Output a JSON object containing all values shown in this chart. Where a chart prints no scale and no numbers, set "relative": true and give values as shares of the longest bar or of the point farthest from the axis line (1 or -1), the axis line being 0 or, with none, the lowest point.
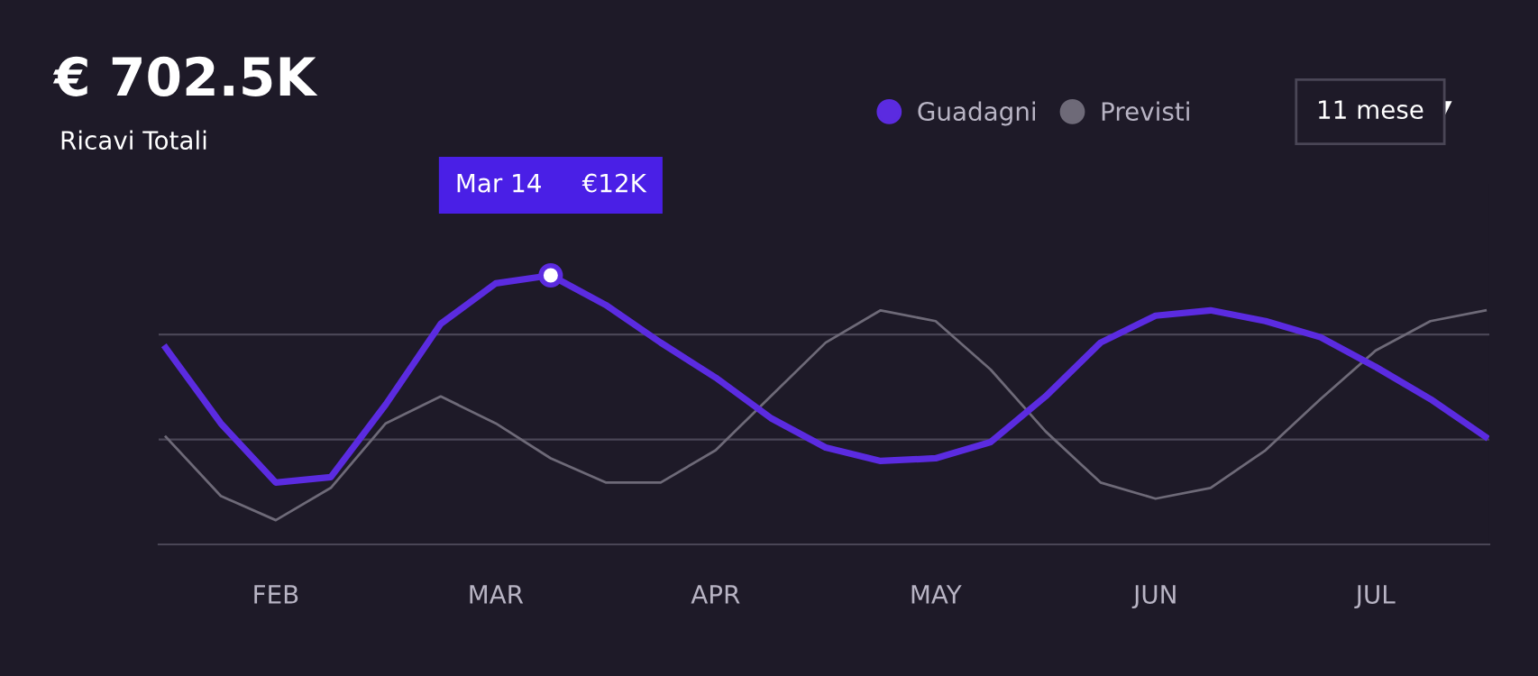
{
  "chart_data": {
    "type": "line",
    "title": "€ 702.5K",
    "subtitle": "Ricavi Totali",
    "relative": true,
    "ref_lines": [
      {
        "axis": "y",
        "value": 0.39,
        "color": "#4a4656"
      },
      {
        "axis": "y",
        "value": 0.78,
        "color": "#4a4656"
      }
    ],
    "legend": "top right",
    "marker": "none",
    "line_style": "solid",
    "categories": [
      null,
      null,
      "FEB",
      null,
      null,
      null,
      "MAR",
      null,
      null,
      null,
      "APR",
      null,
      null,
      null,
      "MAY",
      null,
      null,
      null,
      "JUN",
      null,
      null,
      null,
      "JUL",
      null,
      null
    ],
    "annotations": [
      "Mar 14",
      "€12K",
      "11 mese"
    ],
    "series": [
      {
        "name": "Guadagni",
        "color": "#5b2be0",
        "values": [
          0.73,
          0.45,
          0.23,
          0.25,
          0.52,
          0.82,
          0.97,
          1.0,
          0.89,
          0.75,
          0.62,
          0.47,
          0.36,
          0.31,
          0.32,
          0.38,
          0.55,
          0.75,
          0.85,
          0.87,
          0.83,
          0.77,
          0.66,
          0.54,
          0.4
        ]
      },
      {
        "name": "Previsti",
        "color": "#6e6a78",
        "values": [
          0.4,
          0.18,
          0.09,
          0.21,
          0.45,
          0.55,
          0.45,
          0.32,
          0.23,
          0.23,
          0.35,
          0.55,
          0.75,
          0.87,
          0.83,
          0.65,
          0.42,
          0.23,
          0.17,
          0.21,
          0.35,
          0.54,
          0.72,
          0.83,
          0.87
        ]
      }
    ]
  }
}
